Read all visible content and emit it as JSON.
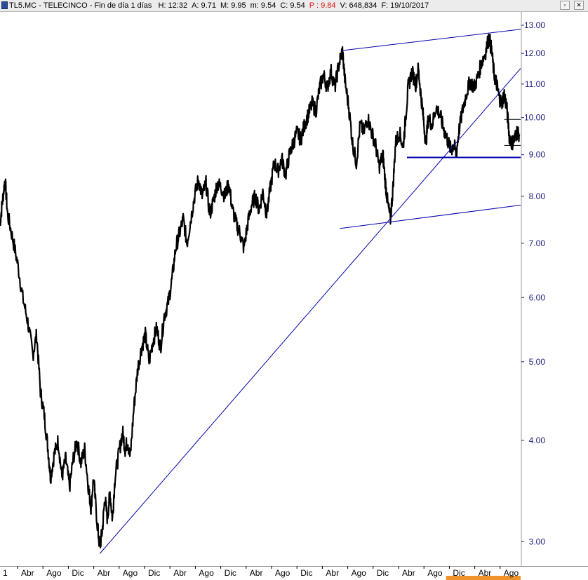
{
  "window": {
    "symbol": "TL5.MC",
    "separator": "-",
    "name": "TELECINCO",
    "period": "Fin de día 1 días",
    "quotes": [
      {
        "label": "H:",
        "value": "12:32"
      },
      {
        "label": "A:",
        "value": "9.71"
      },
      {
        "label": "M:",
        "value": "9.95"
      },
      {
        "label": "m:",
        "value": "9.54"
      },
      {
        "label": "C:",
        "value": "9.54"
      },
      {
        "label": "P :",
        "value": "9.84",
        "color": "#e01010"
      },
      {
        "label": "V:",
        "value": "648,834"
      },
      {
        "label": "F:",
        "value": "19/10/2017"
      }
    ],
    "restore_glyph": "▫",
    "close_glyph": "✕"
  },
  "chart_data": {
    "type": "line",
    "scale": "log",
    "ylim": [
      2.8,
      13.5
    ],
    "y_ticks": [
      "13.00",
      "12.00",
      "11.00",
      "10.00",
      "9.00",
      "8.00",
      "7.00",
      "6.00",
      "5.00",
      "4.00",
      "3.00"
    ],
    "x_ticks": [
      "1",
      "Abr",
      "Ago",
      "Dic",
      "Abr",
      "Ago",
      "Dic",
      "Abr",
      "Ago",
      "Dic",
      "Abr",
      "Ago",
      "Dic",
      "Abr",
      "Ago",
      "Dic",
      "Abr",
      "Ago",
      "Dic",
      "Abr",
      "Ago"
    ],
    "x_range": [
      0,
      20.6
    ],
    "series": [
      {
        "color": "#000000",
        "points": [
          [
            0.0,
            7.4
          ],
          [
            0.1,
            7.9
          ],
          [
            0.2,
            8.4
          ],
          [
            0.3,
            7.6
          ],
          [
            0.5,
            7.1
          ],
          [
            0.7,
            6.6
          ],
          [
            0.9,
            6.0
          ],
          [
            1.1,
            5.6
          ],
          [
            1.3,
            5.1
          ],
          [
            1.45,
            5.4
          ],
          [
            1.6,
            4.6
          ],
          [
            1.75,
            4.3
          ],
          [
            1.9,
            3.9
          ],
          [
            2.0,
            3.6
          ],
          [
            2.15,
            3.85
          ],
          [
            2.3,
            4.0
          ],
          [
            2.45,
            3.6
          ],
          [
            2.6,
            3.8
          ],
          [
            2.75,
            3.5
          ],
          [
            2.9,
            3.8
          ],
          [
            3.05,
            4.0
          ],
          [
            3.2,
            3.75
          ],
          [
            3.35,
            3.9
          ],
          [
            3.5,
            3.5
          ],
          [
            3.6,
            3.3
          ],
          [
            3.7,
            3.6
          ],
          [
            3.85,
            3.15
          ],
          [
            3.95,
            2.95
          ],
          [
            4.05,
            3.1
          ],
          [
            4.15,
            3.4
          ],
          [
            4.25,
            3.2
          ],
          [
            4.35,
            3.45
          ],
          [
            4.45,
            3.2
          ],
          [
            4.55,
            3.6
          ],
          [
            4.7,
            3.85
          ],
          [
            4.85,
            4.1
          ],
          [
            4.95,
            3.9
          ],
          [
            5.05,
            4.0
          ],
          [
            5.15,
            3.8
          ],
          [
            5.3,
            4.4
          ],
          [
            5.45,
            4.9
          ],
          [
            5.6,
            5.2
          ],
          [
            5.75,
            5.4
          ],
          [
            5.9,
            5.0
          ],
          [
            6.05,
            5.3
          ],
          [
            6.2,
            5.5
          ],
          [
            6.35,
            5.2
          ],
          [
            6.5,
            5.7
          ],
          [
            6.65,
            5.9
          ],
          [
            6.8,
            6.3
          ],
          [
            6.95,
            6.9
          ],
          [
            7.1,
            7.2
          ],
          [
            7.25,
            7.5
          ],
          [
            7.4,
            7.0
          ],
          [
            7.55,
            7.5
          ],
          [
            7.7,
            8.0
          ],
          [
            7.85,
            8.4
          ],
          [
            8.0,
            8.0
          ],
          [
            8.15,
            8.3
          ],
          [
            8.3,
            7.6
          ],
          [
            8.45,
            7.9
          ],
          [
            8.6,
            8.3
          ],
          [
            8.75,
            8.2
          ],
          [
            8.9,
            8.0
          ],
          [
            9.05,
            8.3
          ],
          [
            9.2,
            7.7
          ],
          [
            9.35,
            7.4
          ],
          [
            9.5,
            7.2
          ],
          [
            9.65,
            6.9
          ],
          [
            9.8,
            7.4
          ],
          [
            9.95,
            7.8
          ],
          [
            10.1,
            8.0
          ],
          [
            10.25,
            7.7
          ],
          [
            10.4,
            8.1
          ],
          [
            10.55,
            7.6
          ],
          [
            10.7,
            8.2
          ],
          [
            10.85,
            8.8
          ],
          [
            11.0,
            8.6
          ],
          [
            11.15,
            8.9
          ],
          [
            11.3,
            8.5
          ],
          [
            11.45,
            9.0
          ],
          [
            11.6,
            9.3
          ],
          [
            11.75,
            9.6
          ],
          [
            11.9,
            9.4
          ],
          [
            12.05,
            9.8
          ],
          [
            12.2,
            10.1
          ],
          [
            12.35,
            10.4
          ],
          [
            12.5,
            10.2
          ],
          [
            12.65,
            10.9
          ],
          [
            12.8,
            11.3
          ],
          [
            12.95,
            10.9
          ],
          [
            13.1,
            11.4
          ],
          [
            13.25,
            10.9
          ],
          [
            13.4,
            11.6
          ],
          [
            13.55,
            12.1
          ],
          [
            13.65,
            11.1
          ],
          [
            13.8,
            10.3
          ],
          [
            13.95,
            9.3
          ],
          [
            14.1,
            8.8
          ],
          [
            14.25,
            9.8
          ],
          [
            14.4,
            9.6
          ],
          [
            14.55,
            10.0
          ],
          [
            14.7,
            9.6
          ],
          [
            14.85,
            9.3
          ],
          [
            15.0,
            8.7
          ],
          [
            15.15,
            9.0
          ],
          [
            15.25,
            8.3
          ],
          [
            15.35,
            7.8
          ],
          [
            15.45,
            7.5
          ],
          [
            15.55,
            8.2
          ],
          [
            15.65,
            9.3
          ],
          [
            15.8,
            9.6
          ],
          [
            15.95,
            9.2
          ],
          [
            16.05,
            10.0
          ],
          [
            16.15,
            10.9
          ],
          [
            16.3,
            11.4
          ],
          [
            16.45,
            11.0
          ],
          [
            16.55,
            11.5
          ],
          [
            16.65,
            10.7
          ],
          [
            16.75,
            10.0
          ],
          [
            16.85,
            9.3
          ],
          [
            16.95,
            10.0
          ],
          [
            17.1,
            9.8
          ],
          [
            17.25,
            10.3
          ],
          [
            17.4,
            10.1
          ],
          [
            17.55,
            9.7
          ],
          [
            17.7,
            9.4
          ],
          [
            17.85,
            9.1
          ],
          [
            17.95,
            9.3
          ],
          [
            18.05,
            9.0
          ],
          [
            18.15,
            9.6
          ],
          [
            18.3,
            10.2
          ],
          [
            18.45,
            10.7
          ],
          [
            18.6,
            11.1
          ],
          [
            18.75,
            10.9
          ],
          [
            18.9,
            11.2
          ],
          [
            19.05,
            11.7
          ],
          [
            19.2,
            12.0
          ],
          [
            19.35,
            12.6
          ],
          [
            19.45,
            12.1
          ],
          [
            19.55,
            11.3
          ],
          [
            19.65,
            11.0
          ],
          [
            19.75,
            10.6
          ],
          [
            19.85,
            10.4
          ],
          [
            19.95,
            10.7
          ],
          [
            20.05,
            10.3
          ],
          [
            20.15,
            9.5
          ],
          [
            20.25,
            9.3
          ],
          [
            20.35,
            9.4
          ],
          [
            20.45,
            9.6
          ],
          [
            20.55,
            9.54
          ]
        ]
      }
    ],
    "trendlines": [
      {
        "color": "#0000aa",
        "from": [
          13.55,
          12.1
        ],
        "to": [
          20.6,
          12.85
        ]
      },
      {
        "color": "#0000aa",
        "from": [
          13.45,
          7.3
        ],
        "to": [
          20.6,
          7.8
        ]
      },
      {
        "color": "#0000aa",
        "from": [
          3.95,
          2.9
        ],
        "to": [
          20.6,
          11.5
        ]
      },
      {
        "color": "#0000aa",
        "from": [
          16.1,
          8.93
        ],
        "to": [
          20.6,
          8.93
        ]
      },
      {
        "color": "#000000",
        "from": [
          19.95,
          9.95
        ],
        "to": [
          20.6,
          9.95
        ]
      },
      {
        "color": "#000000",
        "from": [
          19.95,
          9.24
        ],
        "to": [
          20.6,
          9.24
        ]
      }
    ],
    "x_band": {
      "color": "#f0932b",
      "from": 17.65,
      "to": 20.6
    }
  }
}
